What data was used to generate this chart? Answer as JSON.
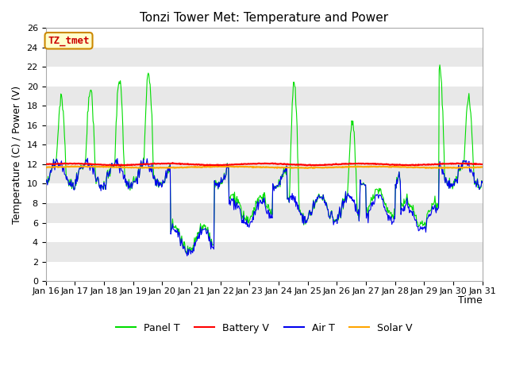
{
  "title": "Tonzi Tower Met: Temperature and Power",
  "xlabel": "Time",
  "ylabel": "Temperature (C) / Power (V)",
  "ylim": [
    0,
    26
  ],
  "yticks": [
    0,
    2,
    4,
    6,
    8,
    10,
    12,
    14,
    16,
    18,
    20,
    22,
    24,
    26
  ],
  "xtick_labels": [
    "Jan 16",
    "Jan 17",
    "Jan 18",
    "Jan 19",
    "Jan 20",
    "Jan 21",
    "Jan 22",
    "Jan 23",
    "Jan 24",
    "Jan 25",
    "Jan 26",
    "Jan 27",
    "Jan 28",
    "Jan 29",
    "Jan 30",
    "Jan 31"
  ],
  "fig_bg_color": "#ffffff",
  "plot_bg_color": "#ffffff",
  "band_colors": [
    "#ffffff",
    "#e8e8e8"
  ],
  "grid_color": "#e0e0e0",
  "panel_t_color": "#00dd00",
  "battery_v_color": "#ff0000",
  "air_t_color": "#0000ee",
  "solar_v_color": "#ffa500",
  "annotation_text": "TZ_tmet",
  "annotation_fg": "#cc0000",
  "annotation_bg": "#ffffcc",
  "annotation_border": "#cc8800",
  "legend_labels": [
    "Panel T",
    "Battery V",
    "Air T",
    "Solar V"
  ],
  "title_fontsize": 11,
  "axis_fontsize": 9,
  "tick_fontsize": 8
}
